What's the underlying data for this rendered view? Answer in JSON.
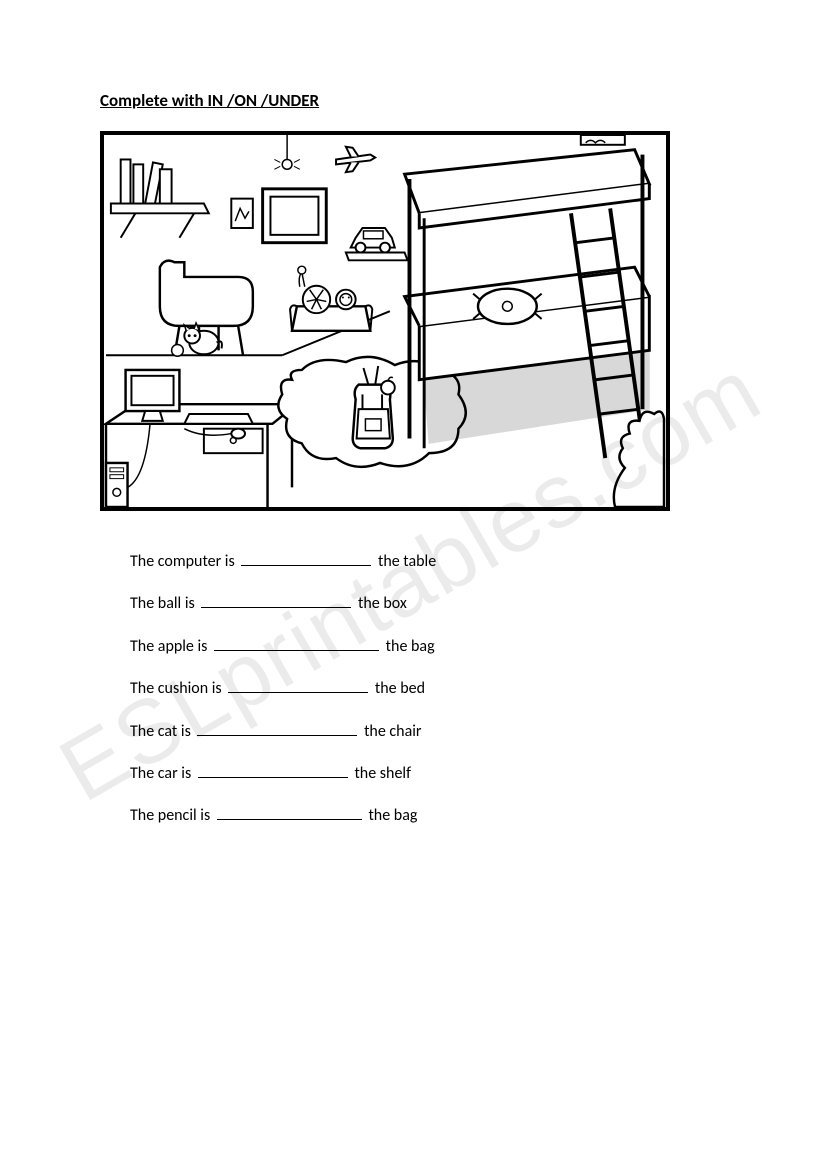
{
  "title": "Complete with IN /ON /UNDER",
  "watermark": "ESLprintables.com",
  "sentences": [
    {
      "before": "The computer is",
      "after": "the table",
      "blank_width": 130
    },
    {
      "before": "The ball is",
      "after": "the box",
      "blank_width": 150
    },
    {
      "before": "The apple is",
      "after": "the bag",
      "blank_width": 165
    },
    {
      "before": "The cushion is",
      "after": "the bed",
      "blank_width": 140
    },
    {
      "before": "The cat is",
      "after": "the chair",
      "blank_width": 160
    },
    {
      "before": "The car is",
      "after": "the shelf",
      "blank_width": 150
    },
    {
      "before": "The pencil is",
      "after": "the bag",
      "blank_width": 145
    }
  ],
  "illustration": {
    "type": "line-drawing",
    "description": "bedroom scene",
    "stroke_color": "#000000",
    "fill_color": "#ffffff",
    "objects": [
      "bunk-bed",
      "ladder",
      "pillow",
      "shelf",
      "books",
      "chair",
      "cat",
      "desk",
      "computer",
      "monitor",
      "keyboard",
      "mouse",
      "rug",
      "backpack",
      "apple",
      "box",
      "ball",
      "toy-lion",
      "toy-car",
      "window",
      "picture-frame",
      "airplane",
      "spider",
      "wall-art"
    ]
  }
}
